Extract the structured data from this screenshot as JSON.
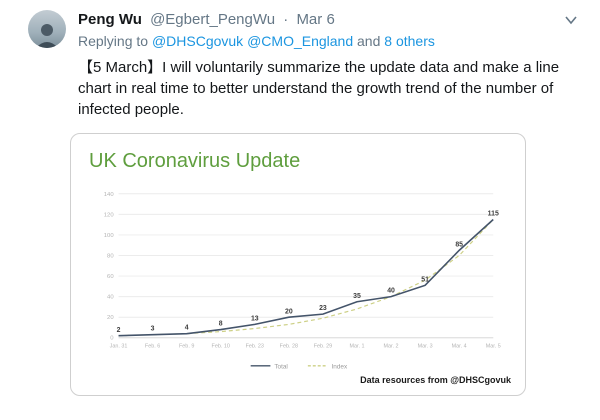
{
  "tweet": {
    "author": "Peng Wu",
    "handle": "@Egbert_PengWu",
    "separator": "·",
    "date": "Mar 6",
    "replying_prefix": "Replying to",
    "reply_handle_1": "@DHSCgovuk",
    "reply_handle_2": "@CMO_England",
    "reply_and": "and",
    "reply_others": "8 others",
    "body": "【5 March】I will voluntarily summarize the update data and make a line chart in real time to better understand the growth trend of the number of infected people."
  },
  "chart_data": {
    "type": "line",
    "title": "UK Coronavirus Update",
    "categories": [
      "Jan. 31",
      "Feb. 6",
      "Feb. 9",
      "Feb. 10",
      "Feb. 23",
      "Feb. 28",
      "Feb. 29",
      "Mar. 1",
      "Mar. 2",
      "Mar. 3",
      "Mar. 4",
      "Mar. 5"
    ],
    "series": [
      {
        "name": "Total",
        "values": [
          2,
          3,
          4,
          8,
          13,
          20,
          23,
          35,
          40,
          51,
          85,
          115
        ],
        "color": "#44546a",
        "style": "solid"
      },
      {
        "name": "Index",
        "values": [
          2,
          3,
          4,
          6,
          9,
          13,
          19,
          28,
          40,
          56,
          80,
          115
        ],
        "color": "#cdd086",
        "style": "dashed"
      }
    ],
    "ylim": [
      0,
      140
    ],
    "yticks": [
      0,
      20,
      40,
      60,
      80,
      100,
      120,
      140
    ],
    "grid": true,
    "legend_position": "bottom",
    "xlabel": "",
    "ylabel": "",
    "source_note": "Data resources from @DHSCgovuk"
  },
  "colors": {
    "link": "#1b95e0",
    "meta_text": "#657786",
    "title_green": "#5f9e3e",
    "grid": "#ececec"
  }
}
